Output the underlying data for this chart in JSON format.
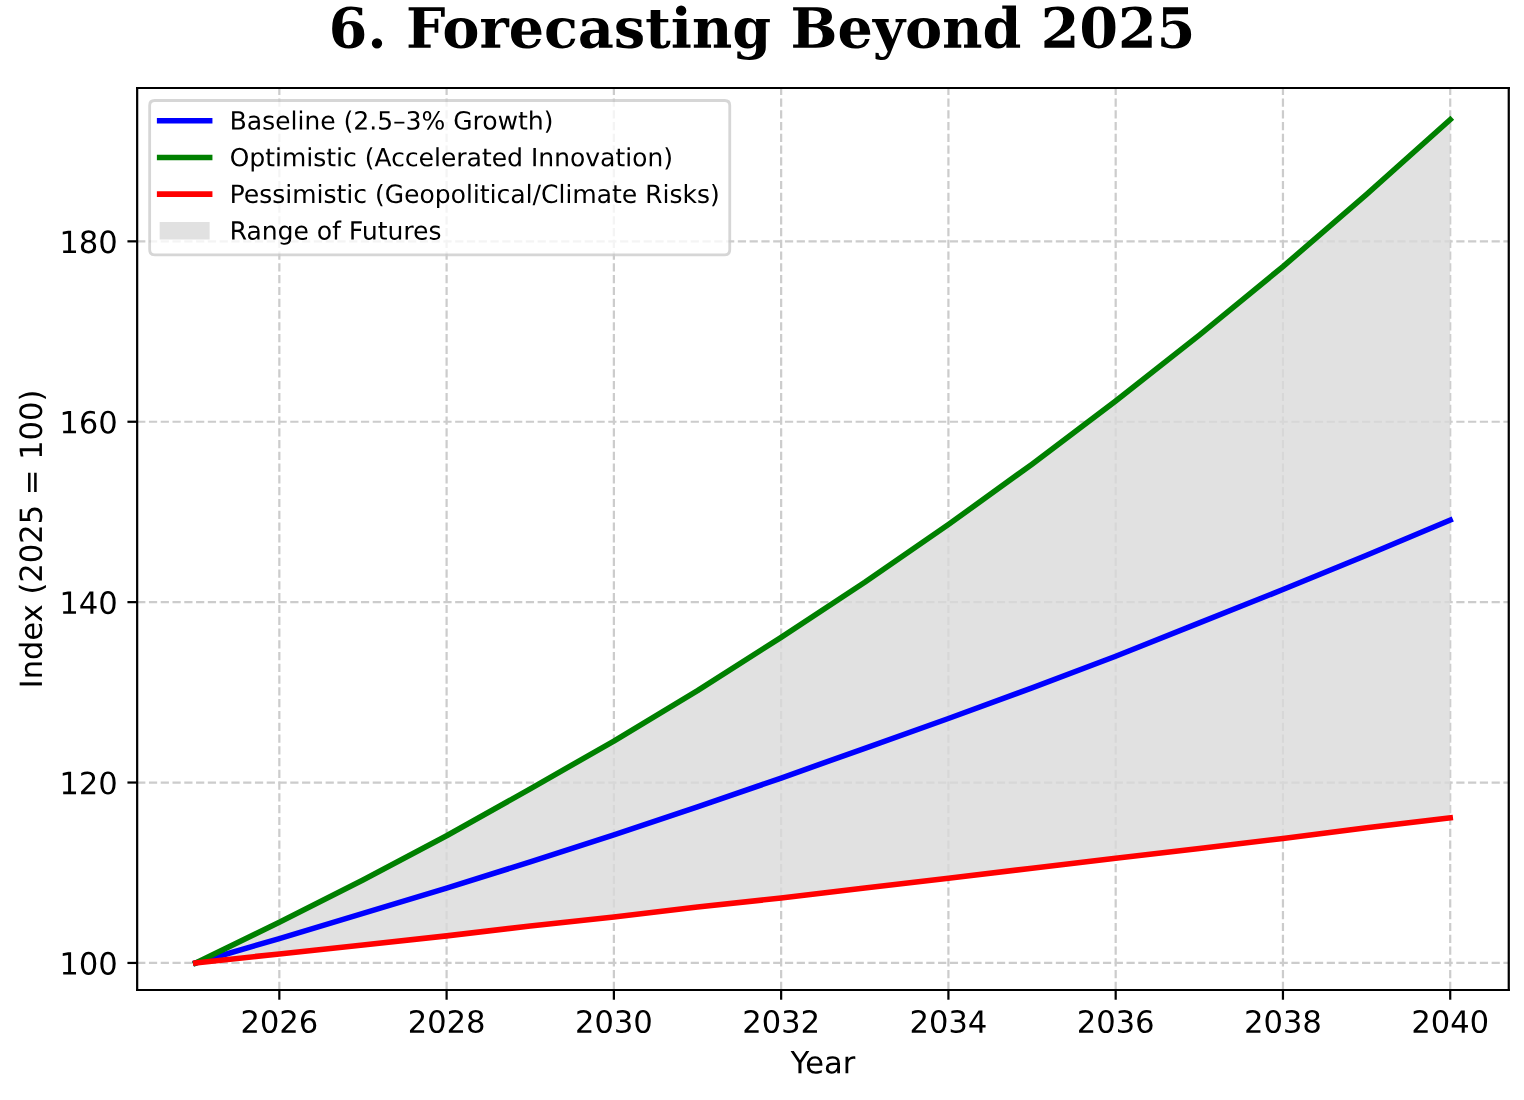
{
  "chart_data": {
    "type": "line",
    "title": "6. Forecasting Beyond 2025",
    "xlabel": "Year",
    "ylabel": "Index (2025 = 100)",
    "x": [
      2025,
      2026,
      2027,
      2028,
      2029,
      2030,
      2031,
      2032,
      2033,
      2034,
      2035,
      2036,
      2037,
      2038,
      2039,
      2040
    ],
    "series": [
      {
        "name": "Baseline (2.5–3% Growth)",
        "color": "#0000ff",
        "values": [
          100,
          102.7,
          105.5,
          108.3,
          111.2,
          114.2,
          117.3,
          120.5,
          123.8,
          127.1,
          130.5,
          134.0,
          137.7,
          141.4,
          145.2,
          149.1
        ],
        "lower": [
          100,
          101,
          102,
          103,
          104.1,
          105.1,
          106.2,
          107.2,
          108.3,
          109.4,
          110.5,
          111.6,
          112.7,
          113.8,
          115,
          116.1
        ],
        "upper": [
          100,
          104.5,
          109.2,
          114.1,
          119.3,
          124.6,
          130.2,
          136.1,
          142.2,
          148.6,
          155.3,
          162.3,
          169.6,
          177.2,
          185.2,
          193.5
        ]
      },
      {
        "name": "Optimistic (Accelerated Innovation)",
        "color": "#008000",
        "values": [
          100,
          104.5,
          109.2,
          114.1,
          119.3,
          124.6,
          130.2,
          136.1,
          142.2,
          148.6,
          155.3,
          162.3,
          169.6,
          177.2,
          185.2,
          193.5
        ]
      },
      {
        "name": "Pessimistic (Geopolitical/Climate Risks)",
        "color": "#ff0000",
        "values": [
          100,
          101,
          102,
          103,
          104.1,
          105.1,
          106.2,
          107.2,
          108.3,
          109.4,
          110.5,
          111.6,
          112.7,
          113.8,
          115,
          116.1
        ]
      },
      {
        "name": "Range of Futures",
        "type": "area",
        "color": "#d9d9d9",
        "values": [
          null,
          null,
          null,
          null,
          null,
          null,
          null,
          null,
          null,
          null,
          null,
          null,
          null,
          null,
          null,
          null
        ]
      }
    ],
    "xlim": [
      2024.3,
      2040.7
    ],
    "xticks": [
      2026,
      2028,
      2030,
      2032,
      2034,
      2036,
      2038,
      2040
    ],
    "ylim": [
      97,
      197
    ],
    "yticks": [
      100,
      120,
      140,
      160,
      180
    ],
    "grid": true,
    "legend": "top left",
    "line_style": "solid",
    "marker": "none"
  }
}
